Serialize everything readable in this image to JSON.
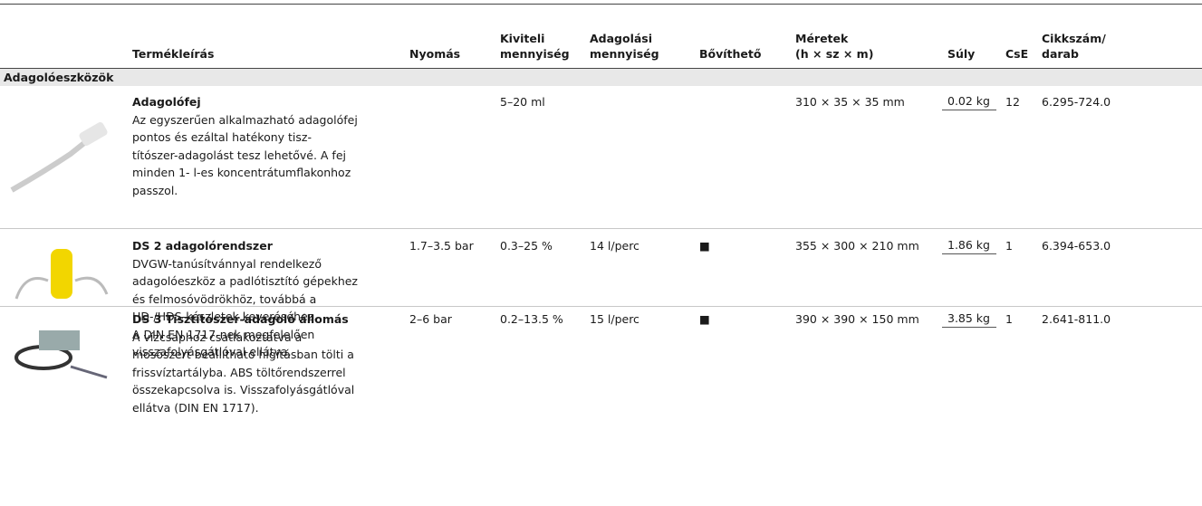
{
  "table": {
    "headers": [
      "Termékleírás",
      "Nyomás",
      "Kiviteli\nmennyiség",
      "Adagolási\nmennyiség",
      "Bővíthető",
      "Méretek\n(h × sz × m)",
      "Súly",
      "CsE",
      "Cikkszám/\ndarab"
    ],
    "rows": [
      {
        "name": "Adagolófej",
        "description": [
          "Az egyszerűen alkalmazható adagolófej",
          "pontos és ezáltal hatékony tisz-",
          "títószer-adagolást tesz lehetővé. A fej",
          "minden 1- l-es koncentrátumflakonhoz",
          "passzol."
        ],
        "cells": [
          null,
          "5–20 ml",
          null,
          null,
          "310 × 35 × 35 mm",
          "0.02 kg",
          "12",
          "6.295-724.0"
        ]
      },
      {
        "name": "DS 2 adagolórendszer",
        "description": [
          "DVGW-tanúsítvánnyal rendelkező",
          "adagolóeszköz a padlótisztító gépekhez",
          "és felmosóvödrökhöz, továbbá a",
          "HD-/HDS-készletek keveréséhez.",
          "A DIN EN 1717-nek megfelelően",
          "visszafolyásgátlóval ellátva."
        ],
        "cells": [
          "1.7–3.5 bar",
          "0.3–25 %",
          "14 l/perc",
          "■",
          "355 × 300 × 210 mm",
          "1.86 kg",
          "1",
          "6.394-653.0"
        ]
      },
      {
        "name": "DS 3 Tisztítószer-adagoló állomás",
        "description": [
          "A vízcsaphoz csatlakoztatva a",
          "mosószert beállítható hígításban tölti a",
          "frissvíztartályba. ABS töltőrendszerrel",
          "összekapcsolva is. Visszafolyásgátlóval",
          "ellátva (DIN EN 1717)."
        ],
        "cells": [
          "2–6 bar",
          "0.2–13.5 %",
          "15 l/perc",
          "■",
          "390 × 390 × 150 mm",
          "3.85 kg",
          "1",
          "2.641-811.0"
        ]
      }
    ]
  },
  "section": {
    "title": "Adagolóeszközök"
  }
}
